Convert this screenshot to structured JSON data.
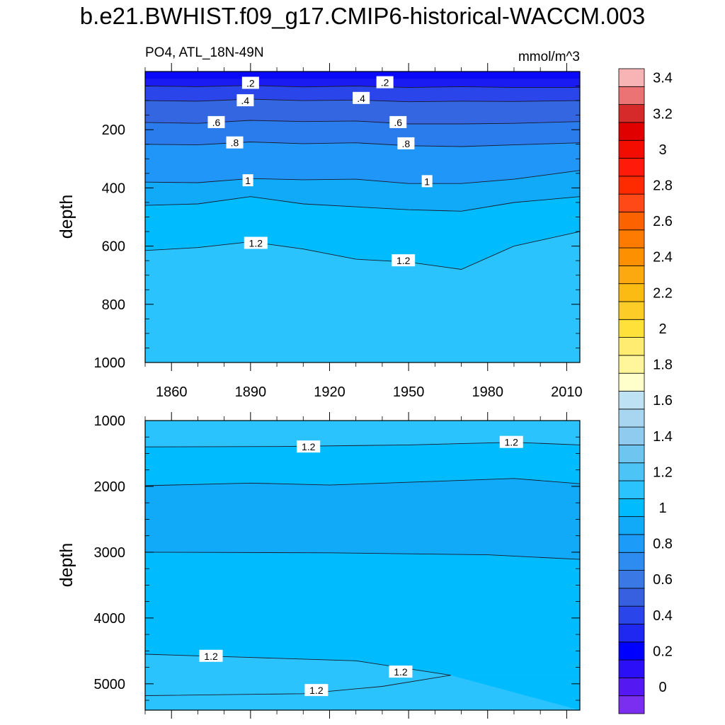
{
  "title": "b.e21.BWHIST.f09_g17.CMIP6-historical-WACCM.003",
  "subtitle_left": "PO4, ATL_18N-49N",
  "subtitle_right": "mmol/m^3",
  "chart_data": [
    {
      "type": "contour",
      "panel": "upper",
      "variable": "PO4",
      "region": "ATL_18N-49N",
      "units": "mmol/m^3",
      "xlabel": "",
      "ylabel": "depth",
      "xlim": [
        1850,
        2015
      ],
      "ylim": [
        1000,
        0
      ],
      "x_ticks": [
        1860,
        1890,
        1920,
        1950,
        1980,
        2010
      ],
      "y_ticks": [
        200,
        400,
        600,
        800,
        1000
      ],
      "contour_lines": [
        {
          "level": 0.2,
          "label": ".2",
          "depth": [
            {
              "x": 1850,
              "y": 50
            },
            {
              "x": 1870,
              "y": 52
            },
            {
              "x": 1890,
              "y": 48
            },
            {
              "x": 1910,
              "y": 53
            },
            {
              "x": 1930,
              "y": 50
            },
            {
              "x": 1950,
              "y": 55
            },
            {
              "x": 1970,
              "y": 52
            },
            {
              "x": 1990,
              "y": 55
            },
            {
              "x": 2015,
              "y": 55
            }
          ]
        },
        {
          "level": 0.4,
          "label": ".4",
          "depth": [
            {
              "x": 1850,
              "y": 100
            },
            {
              "x": 1870,
              "y": 102
            },
            {
              "x": 1890,
              "y": 95
            },
            {
              "x": 1910,
              "y": 100
            },
            {
              "x": 1930,
              "y": 98
            },
            {
              "x": 1950,
              "y": 104
            },
            {
              "x": 1970,
              "y": 102
            },
            {
              "x": 1990,
              "y": 103
            },
            {
              "x": 2015,
              "y": 100
            }
          ]
        },
        {
          "level": 0.6,
          "label": ".6",
          "depth": [
            {
              "x": 1850,
              "y": 175
            },
            {
              "x": 1870,
              "y": 178
            },
            {
              "x": 1890,
              "y": 168
            },
            {
              "x": 1910,
              "y": 172
            },
            {
              "x": 1930,
              "y": 170
            },
            {
              "x": 1950,
              "y": 180
            },
            {
              "x": 1970,
              "y": 180
            },
            {
              "x": 1990,
              "y": 178
            },
            {
              "x": 2015,
              "y": 172
            }
          ]
        },
        {
          "level": 0.8,
          "label": ".8",
          "depth": [
            {
              "x": 1850,
              "y": 250
            },
            {
              "x": 1870,
              "y": 252
            },
            {
              "x": 1890,
              "y": 242
            },
            {
              "x": 1910,
              "y": 248
            },
            {
              "x": 1930,
              "y": 245
            },
            {
              "x": 1950,
              "y": 255
            },
            {
              "x": 1970,
              "y": 258
            },
            {
              "x": 1990,
              "y": 252
            },
            {
              "x": 2015,
              "y": 245
            }
          ]
        },
        {
          "level": 1.0,
          "label": "1",
          "depth": [
            {
              "x": 1850,
              "y": 380
            },
            {
              "x": 1870,
              "y": 382
            },
            {
              "x": 1890,
              "y": 368
            },
            {
              "x": 1910,
              "y": 372
            },
            {
              "x": 1930,
              "y": 370
            },
            {
              "x": 1950,
              "y": 385
            },
            {
              "x": 1970,
              "y": 385
            },
            {
              "x": 1990,
              "y": 370
            },
            {
              "x": 2015,
              "y": 340
            }
          ]
        },
        {
          "level": 1.1,
          "label": "",
          "depth": [
            {
              "x": 1850,
              "y": 460
            },
            {
              "x": 1870,
              "y": 455
            },
            {
              "x": 1890,
              "y": 430
            },
            {
              "x": 1910,
              "y": 455
            },
            {
              "x": 1930,
              "y": 465
            },
            {
              "x": 1950,
              "y": 475
            },
            {
              "x": 1970,
              "y": 480
            },
            {
              "x": 1990,
              "y": 450
            },
            {
              "x": 2015,
              "y": 430
            }
          ]
        },
        {
          "level": 1.2,
          "label": "1.2",
          "depth": [
            {
              "x": 1850,
              "y": 615
            },
            {
              "x": 1870,
              "y": 605
            },
            {
              "x": 1890,
              "y": 585
            },
            {
              "x": 1910,
              "y": 610
            },
            {
              "x": 1930,
              "y": 645
            },
            {
              "x": 1950,
              "y": 655
            },
            {
              "x": 1970,
              "y": 680
            },
            {
              "x": 1990,
              "y": 600
            },
            {
              "x": 2015,
              "y": 550
            }
          ]
        }
      ],
      "line_labels": [
        {
          "label": ".2",
          "x": 1890,
          "y": 40
        },
        {
          "label": ".2",
          "x": 1941,
          "y": 38
        },
        {
          "label": ".4",
          "x": 1888,
          "y": 100
        },
        {
          "label": ".4",
          "x": 1932,
          "y": 92
        },
        {
          "label": ".6",
          "x": 1877,
          "y": 175
        },
        {
          "label": ".6",
          "x": 1946,
          "y": 175
        },
        {
          "label": ".8",
          "x": 1884,
          "y": 245
        },
        {
          "label": ".8",
          "x": 1949,
          "y": 248
        },
        {
          "label": "1",
          "x": 1889,
          "y": 375
        },
        {
          "label": "1",
          "x": 1957,
          "y": 378
        },
        {
          "label": "1.2",
          "x": 1892,
          "y": 590
        },
        {
          "label": "1.2",
          "x": 1948,
          "y": 650
        }
      ]
    },
    {
      "type": "contour",
      "panel": "lower",
      "variable": "PO4",
      "region": "ATL_18N-49N",
      "units": "mmol/m^3",
      "xlabel": "",
      "ylabel": "depth",
      "xlim": [
        1850,
        2015
      ],
      "ylim": [
        5400,
        1000
      ],
      "y_ticks": [
        1000,
        2000,
        3000,
        4000,
        5000
      ],
      "contour_lines": [
        {
          "level": 1.2,
          "label": "1.2",
          "depth": [
            {
              "x": 1850,
              "y": 1400
            },
            {
              "x": 1900,
              "y": 1395
            },
            {
              "x": 1950,
              "y": 1370
            },
            {
              "x": 1990,
              "y": 1330
            },
            {
              "x": 2015,
              "y": 1370
            }
          ]
        },
        {
          "level": 1.1,
          "label": "",
          "depth": [
            {
              "x": 1850,
              "y": 1990
            },
            {
              "x": 1890,
              "y": 1950
            },
            {
              "x": 1920,
              "y": 1980
            },
            {
              "x": 1990,
              "y": 1880
            },
            {
              "x": 2015,
              "y": 1960
            }
          ]
        },
        {
          "level": 1.1,
          "label": "",
          "depth": [
            {
              "x": 1850,
              "y": 3000
            },
            {
              "x": 1920,
              "y": 3010
            },
            {
              "x": 1980,
              "y": 3040
            },
            {
              "x": 2015,
              "y": 3110
            }
          ]
        },
        {
          "level": 1.2,
          "label": "1.2",
          "depth": [
            {
              "x": 1850,
              "y": 4550
            },
            {
              "x": 1890,
              "y": 4600
            },
            {
              "x": 1930,
              "y": 4650
            },
            {
              "x": 1966,
              "y": 4870
            }
          ]
        },
        {
          "level": 1.2,
          "label": "1.2",
          "depth": [
            {
              "x": 1850,
              "y": 5180
            },
            {
              "x": 1910,
              "y": 5150
            },
            {
              "x": 1940,
              "y": 5040
            },
            {
              "x": 1966,
              "y": 4870
            }
          ]
        }
      ],
      "line_labels": [
        {
          "label": "1.2",
          "x": 1912,
          "y": 1400
        },
        {
          "label": "1.2",
          "x": 1989,
          "y": 1330
        },
        {
          "label": "1.2",
          "x": 1875,
          "y": 4580
        },
        {
          "label": "1.2",
          "x": 1947,
          "y": 4820
        },
        {
          "label": "1.2",
          "x": 1915,
          "y": 5100
        }
      ]
    }
  ],
  "colorbar": {
    "labels": [
      "0",
      "0.2",
      "0.4",
      "0.6",
      "0.8",
      "1",
      "1.2",
      "1.4",
      "1.6",
      "1.8",
      "2",
      "2.2",
      "2.4",
      "2.6",
      "2.8",
      "3",
      "3.2",
      "3.4"
    ],
    "colors": [
      "#7b2df0",
      "#5418f2",
      "#2b10f7",
      "#0000ff",
      "#1e28f0",
      "#2a46ea",
      "#3660e0",
      "#3a78e6",
      "#2e8cf0",
      "#1c9cf8",
      "#10aaf8",
      "#00bcff",
      "#2bc3fd",
      "#4cc4f5",
      "#6ec6f0",
      "#8ecbee",
      "#a8d5ef",
      "#bee2f3",
      "#ffffcc",
      "#fff59a",
      "#ffec70",
      "#ffe13a",
      "#fdcc26",
      "#fcbb12",
      "#fca910",
      "#fd9000",
      "#fd7c00",
      "#fc6200",
      "#ff4a18",
      "#ff2b00",
      "#ff1a0a",
      "#f20d00",
      "#e00000",
      "#d62a2a",
      "#ec7373",
      "#f8b4b4"
    ]
  }
}
